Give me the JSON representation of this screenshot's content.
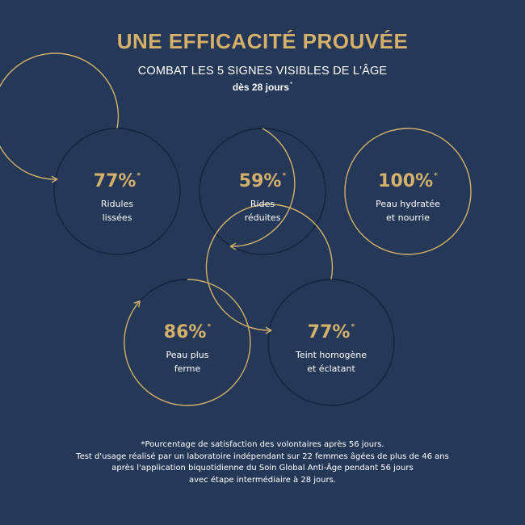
{
  "header": {
    "title": "UNE EFFICACITÉ PROUVÉE",
    "subtitle": "COMBAT LES 5 SIGNES VISIBLES DE L'ÂGE",
    "period": "dès 28 jours",
    "period_mark": "*"
  },
  "colors": {
    "background": "#253858",
    "gold": "#d4b06a",
    "ring_dark": "#14223b",
    "text": "#ffffff"
  },
  "stats": [
    {
      "value": "77%",
      "mark": "*",
      "label": "Ridules\nlissées",
      "arrow": "counterclockwise"
    },
    {
      "value": "59%",
      "mark": "*",
      "label": "Rides\nréduites",
      "arrow": "clockwise"
    },
    {
      "value": "100%",
      "mark": "*",
      "label": "Peau hydratée\net nourrie",
      "arrow": "none"
    },
    {
      "value": "86%",
      "mark": "*",
      "label": "Peau plus\nferme",
      "arrow": "clockwise"
    },
    {
      "value": "77%",
      "mark": "*",
      "label": "Teint homogène\net éclatant",
      "arrow": "counterclockwise"
    }
  ],
  "footnote": {
    "line1": "*Pourcentage de satisfaction des volontaires après 56 jours.",
    "line2": "Test d'usage réalisé par un laboratoire indépendant sur 22 femmes âgées de plus de 46 ans",
    "line3": "après l'application biquotidienne du Soin Global Anti-Âge pendant 56 jours",
    "line4": "avec étape intermédiaire à 28 jours."
  }
}
